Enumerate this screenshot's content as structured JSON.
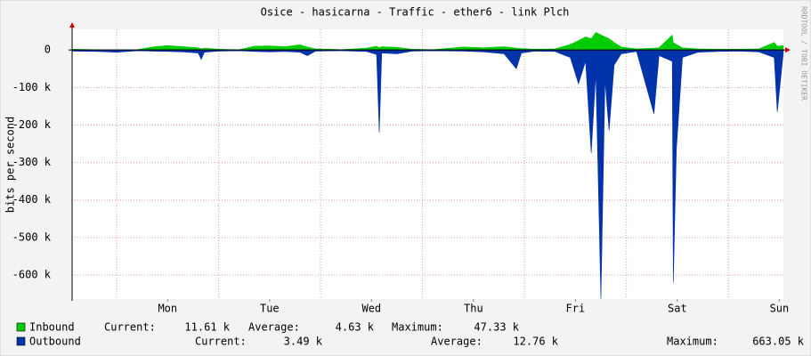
{
  "chart_data": {
    "type": "area",
    "title": "Osice - hasicarna - Traffic - ether6 - link Plch",
    "y_label": "bits per second",
    "side_text": "RRDTOOL / TOBI OETIKER",
    "x": [
      0.57,
      0.8,
      1.0,
      1.2,
      1.35,
      1.5,
      1.65,
      1.8,
      1.83,
      1.86,
      2.0,
      2.2,
      2.35,
      2.5,
      2.65,
      2.8,
      2.87,
      2.95,
      3.2,
      3.45,
      3.55,
      3.576,
      3.6,
      3.75,
      3.9,
      4.1,
      4.4,
      4.6,
      4.8,
      4.92,
      4.97,
      5.1,
      5.3,
      5.45,
      5.53,
      5.6,
      5.655,
      5.7,
      5.75,
      5.79,
      5.83,
      5.88,
      5.95,
      6.1,
      6.27,
      6.32,
      6.45,
      6.46,
      6.49,
      6.55,
      6.7,
      6.9,
      7.1,
      7.3,
      7.45,
      7.48,
      7.54
    ],
    "series": [
      {
        "name": "Inbound",
        "color": "#00cc00",
        "values": [
          2000,
          1000,
          500,
          1000,
          8000,
          12000,
          9000,
          6000,
          3000,
          5000,
          2000,
          1000,
          10000,
          11000,
          9000,
          14000,
          8000,
          3000,
          1000,
          5000,
          10000,
          6000,
          9000,
          7000,
          2000,
          1000,
          8000,
          6000,
          9000,
          5000,
          4000,
          2000,
          3000,
          15000,
          25000,
          35000,
          30000,
          47000,
          40000,
          35000,
          30000,
          20000,
          8000,
          3000,
          5000,
          6000,
          40000,
          20000,
          15000,
          6000,
          3000,
          2000,
          2000,
          3000,
          20000,
          10000,
          12000
        ],
        "stats": [
          {
            "label": "Current:",
            "value": "11.61 k"
          },
          {
            "label": "Average:",
            "value": "4.63 k"
          },
          {
            "label": "Maximum:",
            "value": "47.33 k"
          }
        ]
      },
      {
        "name": "Outbound",
        "color": "#0033aa",
        "values": [
          -3000,
          -4000,
          -6000,
          -2000,
          -3000,
          -4000,
          -5000,
          -8000,
          -25000,
          -6000,
          -3000,
          -2000,
          -4000,
          -5000,
          -4000,
          -6000,
          -15000,
          -3000,
          -2000,
          -4000,
          -12000,
          -220000,
          -8000,
          -10000,
          -3000,
          -2000,
          -3000,
          -5000,
          -10000,
          -50000,
          -8000,
          -3000,
          -4000,
          -20000,
          -90000,
          -30000,
          -275000,
          -60000,
          -663000,
          -80000,
          -215000,
          -40000,
          -10000,
          -4000,
          -170000,
          -15000,
          -30000,
          -620000,
          -265000,
          -20000,
          -6000,
          -4000,
          -3000,
          -5000,
          -20000,
          -165000,
          -6000
        ],
        "stats": [
          {
            "label": "Current:",
            "value": "3.49 k"
          },
          {
            "label": "Average:",
            "value": "12.76 k"
          },
          {
            "label": "Maximum:",
            "value": "663.05 k"
          }
        ]
      }
    ],
    "xlim": [
      0.563,
      7.54
    ],
    "xticks": [
      {
        "value": 1.5,
        "label": "Mon"
      },
      {
        "value": 2.5,
        "label": "Tue"
      },
      {
        "value": 3.5,
        "label": "Wed"
      },
      {
        "value": 4.5,
        "label": "Thu"
      },
      {
        "value": 5.5,
        "label": "Fri"
      },
      {
        "value": 6.5,
        "label": "Sat"
      },
      {
        "value": 7.5,
        "label": "Sun"
      }
    ],
    "xgrid": [
      1,
      2,
      3,
      4,
      5,
      6,
      7
    ],
    "ylim": [
      -664000,
      55000
    ],
    "yticks": [
      0,
      {
        "value": -100000,
        "label": "-100 k"
      },
      {
        "value": -200000,
        "label": "-200 k"
      },
      {
        "value": -300000,
        "label": "-300 k"
      },
      {
        "value": -400000,
        "label": "-400 k"
      },
      {
        "value": -500000,
        "label": "-500 k"
      },
      {
        "value": -600000,
        "label": "-600 k"
      }
    ],
    "grid": true
  }
}
